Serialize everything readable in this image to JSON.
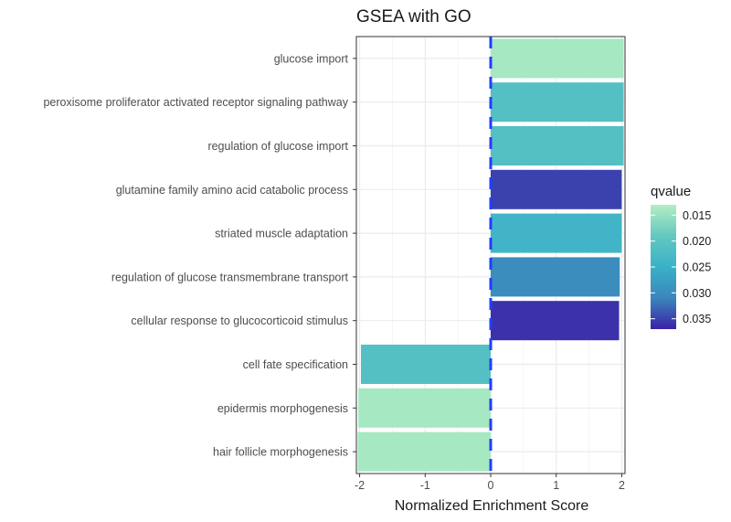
{
  "chart_data": {
    "type": "bar",
    "orientation": "horizontal",
    "title": "GSEA with GO",
    "xlabel": "Normalized Enrichment Score",
    "ylabel": "",
    "xlim": [
      -2.05,
      2.05
    ],
    "xticks": [
      -2,
      -1,
      0,
      1,
      2
    ],
    "reference_line": 0,
    "categories": [
      "glucose import",
      "peroxisome proliferator activated receptor signaling pathway",
      "regulation of glucose import",
      "glutamine family amino acid catabolic process",
      "striated muscle adaptation",
      "regulation of glucose transmembrane transport",
      "cellular response to glucocorticoid stimulus",
      "cell fate specification",
      "epidermis morphogenesis",
      "hair follicle morphogenesis"
    ],
    "values": [
      2.03,
      2.03,
      2.03,
      2.0,
      2.0,
      1.97,
      1.96,
      -1.98,
      -2.02,
      -2.03
    ],
    "qvalues": [
      0.014,
      0.021,
      0.021,
      0.035,
      0.024,
      0.03,
      0.036,
      0.021,
      0.014,
      0.014
    ],
    "legend": {
      "title": "qvalue",
      "position": "right",
      "range": [
        0.013,
        0.037
      ],
      "ticks": [
        0.015,
        0.02,
        0.025,
        0.03,
        0.035
      ],
      "tick_labels": [
        "0.015",
        "0.020",
        "0.025",
        "0.030",
        "0.035"
      ]
    },
    "colors": {
      "low": "#b3eec2",
      "mid_low": "#63c8c0",
      "mid": "#3ab1c8",
      "mid_high": "#3b86bb",
      "high": "#3b20a8",
      "reference_line": "#1f3fff",
      "grid_major": "#ebebeb",
      "grid_minor": "#f5f5f5",
      "panel_border": "#333333"
    }
  }
}
